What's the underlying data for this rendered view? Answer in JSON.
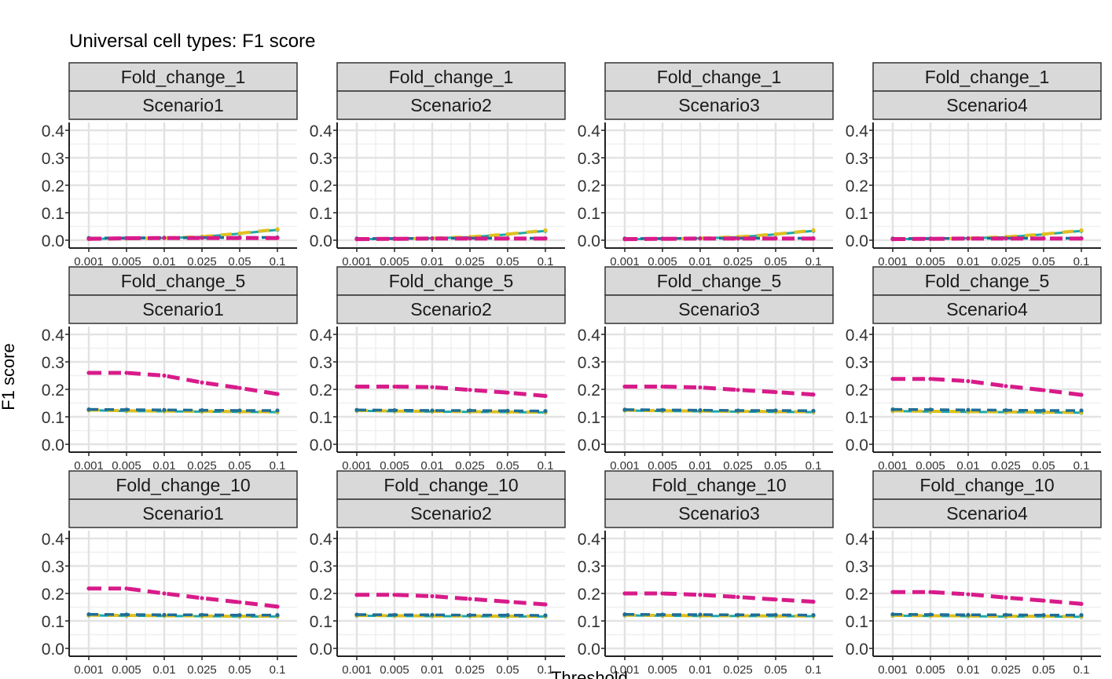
{
  "chart_data": {
    "type": "line",
    "title": "Universal cell types: F1 score",
    "xlabel": "Threshold",
    "ylabel": "F1 score",
    "x_ticks": [
      "0.001",
      "0.005",
      "0.01",
      "0.025",
      "0.05",
      "0.1"
    ],
    "y_ticks": [
      "0.0",
      "0.1",
      "0.2",
      "0.3",
      "0.4"
    ],
    "ylim": [
      0,
      0.4
    ],
    "grid": true,
    "legend": "none",
    "colors": {
      "magenta": "#d81b8a",
      "yellow": "#e0c020",
      "teal": "#20a8a8",
      "blue": "#1f6e96"
    },
    "panels": [
      {
        "fold_change": "Fold_change_1",
        "scenario": "Scenario1",
        "series": [
          {
            "color": "magenta",
            "values": [
              0.005,
              0.007,
              0.008,
              0.008,
              0.008,
              0.008
            ]
          },
          {
            "color": "yellow",
            "values": [
              0.005,
              0.006,
              0.008,
              0.013,
              0.025,
              0.04
            ]
          },
          {
            "color": "teal",
            "values": [
              0.005,
              0.006,
              0.008,
              0.012,
              0.024,
              0.038
            ]
          },
          {
            "color": "blue",
            "values": [
              0.008,
              0.008,
              0.009,
              0.009,
              0.01,
              0.01
            ]
          }
        ]
      },
      {
        "fold_change": "Fold_change_1",
        "scenario": "Scenario2",
        "series": [
          {
            "color": "magenta",
            "values": [
              0.004,
              0.005,
              0.006,
              0.006,
              0.006,
              0.006
            ]
          },
          {
            "color": "yellow",
            "values": [
              0.004,
              0.005,
              0.007,
              0.012,
              0.022,
              0.036
            ]
          },
          {
            "color": "teal",
            "values": [
              0.004,
              0.005,
              0.007,
              0.011,
              0.021,
              0.034
            ]
          },
          {
            "color": "blue",
            "values": [
              0.006,
              0.006,
              0.007,
              0.007,
              0.007,
              0.007
            ]
          }
        ]
      },
      {
        "fold_change": "Fold_change_1",
        "scenario": "Scenario3",
        "series": [
          {
            "color": "magenta",
            "values": [
              0.004,
              0.005,
              0.006,
              0.006,
              0.006,
              0.006
            ]
          },
          {
            "color": "yellow",
            "values": [
              0.004,
              0.005,
              0.007,
              0.012,
              0.022,
              0.036
            ]
          },
          {
            "color": "teal",
            "values": [
              0.004,
              0.005,
              0.007,
              0.011,
              0.021,
              0.034
            ]
          },
          {
            "color": "blue",
            "values": [
              0.006,
              0.006,
              0.007,
              0.007,
              0.007,
              0.007
            ]
          }
        ]
      },
      {
        "fold_change": "Fold_change_1",
        "scenario": "Scenario4",
        "series": [
          {
            "color": "magenta",
            "values": [
              0.004,
              0.005,
              0.006,
              0.006,
              0.006,
              0.006
            ]
          },
          {
            "color": "yellow",
            "values": [
              0.004,
              0.005,
              0.007,
              0.012,
              0.022,
              0.036
            ]
          },
          {
            "color": "teal",
            "values": [
              0.004,
              0.005,
              0.007,
              0.011,
              0.021,
              0.034
            ]
          },
          {
            "color": "blue",
            "values": [
              0.006,
              0.006,
              0.007,
              0.007,
              0.007,
              0.007
            ]
          }
        ]
      },
      {
        "fold_change": "Fold_change_5",
        "scenario": "Scenario1",
        "series": [
          {
            "color": "magenta",
            "values": [
              0.26,
              0.26,
              0.25,
              0.225,
              0.205,
              0.183
            ]
          },
          {
            "color": "yellow",
            "values": [
              0.125,
              0.122,
              0.121,
              0.12,
              0.119,
              0.118
            ]
          },
          {
            "color": "teal",
            "values": [
              0.124,
              0.121,
              0.12,
              0.119,
              0.118,
              0.117
            ]
          },
          {
            "color": "blue",
            "values": [
              0.127,
              0.126,
              0.125,
              0.124,
              0.123,
              0.123
            ]
          }
        ]
      },
      {
        "fold_change": "Fold_change_5",
        "scenario": "Scenario2",
        "series": [
          {
            "color": "magenta",
            "values": [
              0.21,
              0.21,
              0.208,
              0.198,
              0.188,
              0.176
            ]
          },
          {
            "color": "yellow",
            "values": [
              0.123,
              0.121,
              0.12,
              0.119,
              0.118,
              0.117
            ]
          },
          {
            "color": "teal",
            "values": [
              0.122,
              0.12,
              0.119,
              0.118,
              0.117,
              0.116
            ]
          },
          {
            "color": "blue",
            "values": [
              0.125,
              0.124,
              0.123,
              0.123,
              0.122,
              0.121
            ]
          }
        ]
      },
      {
        "fold_change": "Fold_change_5",
        "scenario": "Scenario3",
        "series": [
          {
            "color": "magenta",
            "values": [
              0.21,
              0.21,
              0.207,
              0.198,
              0.19,
              0.181
            ]
          },
          {
            "color": "yellow",
            "values": [
              0.124,
              0.122,
              0.121,
              0.12,
              0.119,
              0.118
            ]
          },
          {
            "color": "teal",
            "values": [
              0.123,
              0.121,
              0.12,
              0.119,
              0.118,
              0.117
            ]
          },
          {
            "color": "blue",
            "values": [
              0.126,
              0.125,
              0.124,
              0.123,
              0.123,
              0.122
            ]
          }
        ]
      },
      {
        "fold_change": "Fold_change_5",
        "scenario": "Scenario4",
        "series": [
          {
            "color": "magenta",
            "values": [
              0.238,
              0.238,
              0.23,
              0.212,
              0.197,
              0.18
            ]
          },
          {
            "color": "yellow",
            "values": [
              0.122,
              0.12,
              0.119,
              0.118,
              0.117,
              0.116
            ]
          },
          {
            "color": "teal",
            "values": [
              0.121,
              0.119,
              0.118,
              0.117,
              0.116,
              0.115
            ]
          },
          {
            "color": "blue",
            "values": [
              0.127,
              0.126,
              0.125,
              0.124,
              0.123,
              0.123
            ]
          }
        ]
      },
      {
        "fold_change": "Fold_change_10",
        "scenario": "Scenario1",
        "series": [
          {
            "color": "magenta",
            "values": [
              0.218,
              0.218,
              0.2,
              0.183,
              0.168,
              0.152
            ]
          },
          {
            "color": "yellow",
            "values": [
              0.121,
              0.12,
              0.119,
              0.118,
              0.117,
              0.117
            ]
          },
          {
            "color": "teal",
            "values": [
              0.12,
              0.119,
              0.118,
              0.117,
              0.116,
              0.116
            ]
          },
          {
            "color": "blue",
            "values": [
              0.124,
              0.123,
              0.122,
              0.122,
              0.121,
              0.121
            ]
          }
        ]
      },
      {
        "fold_change": "Fold_change_10",
        "scenario": "Scenario2",
        "series": [
          {
            "color": "magenta",
            "values": [
              0.195,
              0.195,
              0.19,
              0.18,
              0.17,
              0.16
            ]
          },
          {
            "color": "yellow",
            "values": [
              0.12,
              0.119,
              0.118,
              0.118,
              0.117,
              0.117
            ]
          },
          {
            "color": "teal",
            "values": [
              0.119,
              0.118,
              0.117,
              0.117,
              0.116,
              0.116
            ]
          },
          {
            "color": "blue",
            "values": [
              0.123,
              0.122,
              0.122,
              0.121,
              0.121,
              0.12
            ]
          }
        ]
      },
      {
        "fold_change": "Fold_change_10",
        "scenario": "Scenario3",
        "series": [
          {
            "color": "magenta",
            "values": [
              0.2,
              0.2,
              0.195,
              0.187,
              0.178,
              0.17
            ]
          },
          {
            "color": "yellow",
            "values": [
              0.121,
              0.12,
              0.119,
              0.119,
              0.118,
              0.118
            ]
          },
          {
            "color": "teal",
            "values": [
              0.12,
              0.119,
              0.118,
              0.118,
              0.117,
              0.117
            ]
          },
          {
            "color": "blue",
            "values": [
              0.124,
              0.123,
              0.123,
              0.122,
              0.122,
              0.121
            ]
          }
        ]
      },
      {
        "fold_change": "Fold_change_10",
        "scenario": "Scenario4",
        "series": [
          {
            "color": "magenta",
            "values": [
              0.205,
              0.205,
              0.197,
              0.185,
              0.174,
              0.162
            ]
          },
          {
            "color": "yellow",
            "values": [
              0.12,
              0.119,
              0.118,
              0.117,
              0.117,
              0.116
            ]
          },
          {
            "color": "teal",
            "values": [
              0.119,
              0.118,
              0.117,
              0.116,
              0.116,
              0.115
            ]
          },
          {
            "color": "blue",
            "values": [
              0.124,
              0.123,
              0.122,
              0.122,
              0.121,
              0.121
            ]
          }
        ]
      }
    ]
  }
}
